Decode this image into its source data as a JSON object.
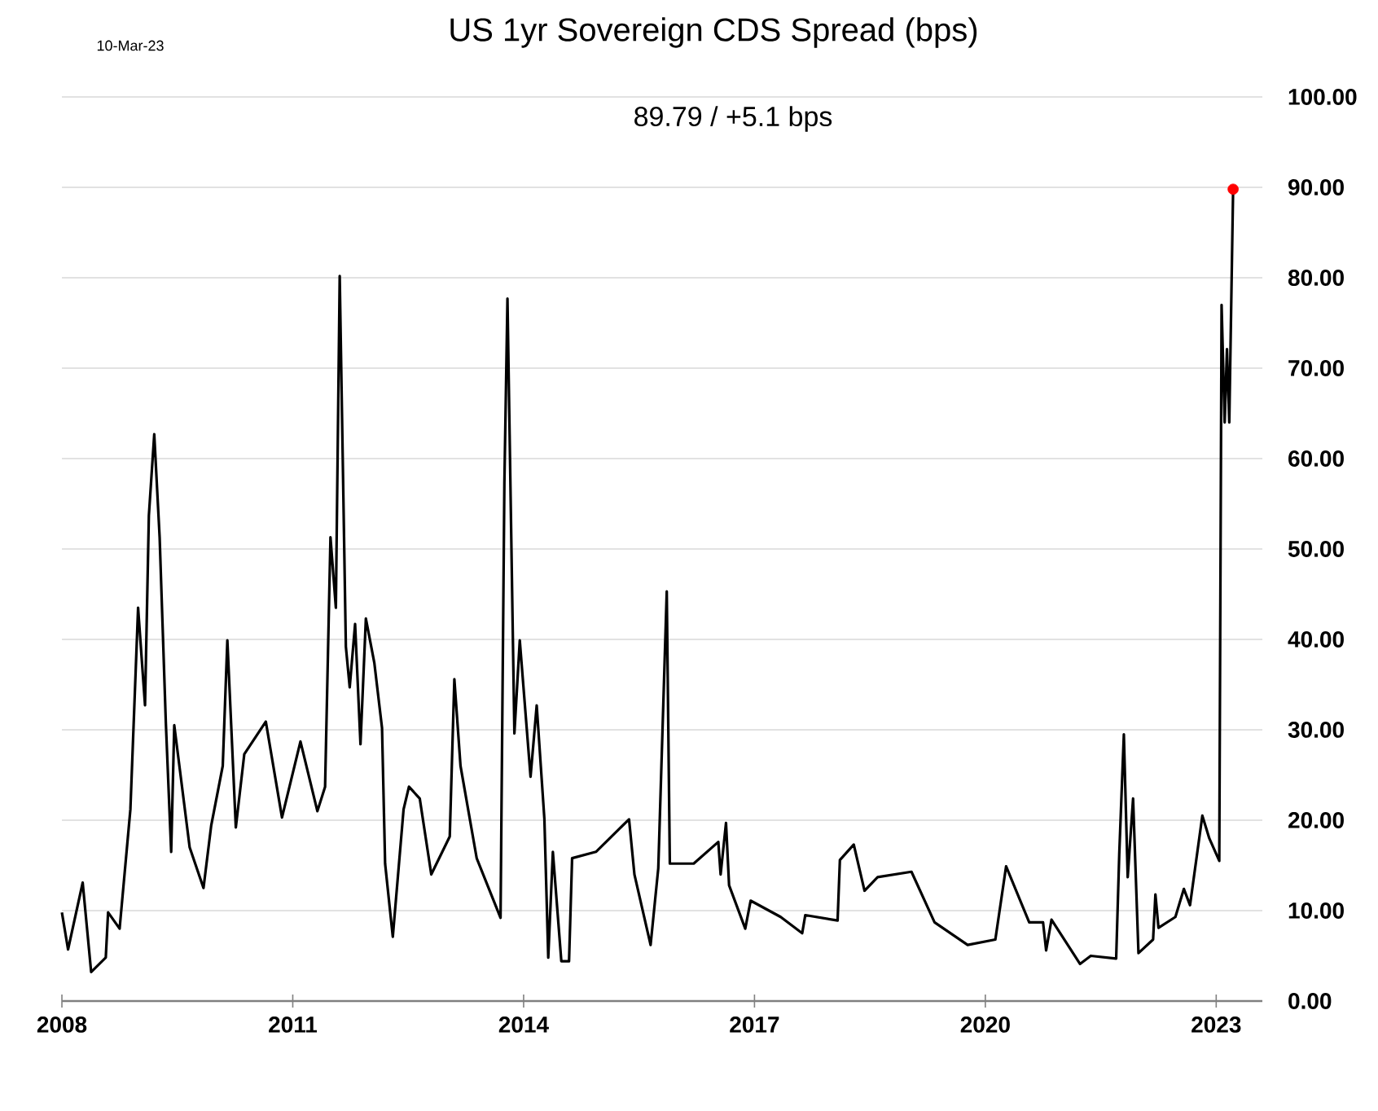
{
  "chart_data": {
    "type": "line",
    "title": "US 1yr Sovereign CDS Spread (bps)",
    "annotations": [
      "10-Mar-23",
      "89.79  /  +5.1 bps"
    ],
    "xlim": [
      2008,
      2023.6
    ],
    "xticks": [
      2008,
      2011,
      2014,
      2017,
      2020,
      2023
    ],
    "ylim": [
      0,
      100
    ],
    "yticks": [
      {
        "value": 0,
        "label": "0.00"
      },
      {
        "value": 10,
        "label": "10.00"
      },
      {
        "value": 20,
        "label": "20.00"
      },
      {
        "value": 30,
        "label": "30.00"
      },
      {
        "value": 40,
        "label": "40.00"
      },
      {
        "value": 50,
        "label": "50.00"
      },
      {
        "value": 60,
        "label": "60.00"
      },
      {
        "value": 70,
        "label": "70.00"
      },
      {
        "value": 80,
        "label": "80.00"
      },
      {
        "value": 90,
        "label": "90.00"
      },
      {
        "value": 100,
        "label": "100.00"
      }
    ],
    "grid": "y",
    "series": [
      {
        "color": "#000000",
        "x": [
          2008.0,
          2008.08,
          2008.27,
          2008.38,
          2008.57,
          2008.6,
          2008.75,
          2008.89,
          2008.99,
          2009.08,
          2009.13,
          2009.2,
          2009.27,
          2009.35,
          2009.42,
          2009.46,
          2009.66,
          2009.84,
          2009.94,
          2010.09,
          2010.15,
          2010.26,
          2010.37,
          2010.65,
          2010.86,
          2011.1,
          2011.32,
          2011.42,
          2011.49,
          2011.56,
          2011.61,
          2011.69,
          2011.74,
          2011.81,
          2011.88,
          2011.95,
          2012.06,
          2012.16,
          2012.2,
          2012.3,
          2012.44,
          2012.51,
          2012.65,
          2012.8,
          2013.04,
          2013.1,
          2013.18,
          2013.39,
          2013.7,
          2013.75,
          2013.79,
          2013.88,
          2013.95,
          2014.09,
          2014.17,
          2014.27,
          2014.32,
          2014.38,
          2014.49,
          2014.59,
          2014.63,
          2014.94,
          2015.37,
          2015.44,
          2015.65,
          2015.75,
          2015.86,
          2015.9,
          2016.21,
          2016.53,
          2016.56,
          2016.63,
          2016.67,
          2016.88,
          2016.95,
          2017.34,
          2017.62,
          2017.66,
          2018.08,
          2018.11,
          2018.29,
          2018.43,
          2018.6,
          2019.04,
          2019.34,
          2019.77,
          2020.13,
          2020.27,
          2020.57,
          2020.75,
          2020.79,
          2020.86,
          2021.23,
          2021.37,
          2021.7,
          2021.74,
          2021.8,
          2021.85,
          2021.92,
          2021.99,
          2022.18,
          2022.21,
          2022.25,
          2022.47,
          2022.58,
          2022.66,
          2022.82,
          2022.91,
          2023.04,
          2023.07,
          2023.11,
          2023.14,
          2023.17,
          2023.2,
          2023.22
        ],
        "values": [
          9.8,
          5.7,
          13.1,
          3.2,
          4.8,
          9.8,
          8,
          21.2,
          43.5,
          32.7,
          53.7,
          62.7,
          51.3,
          30.9,
          16.5,
          30.5,
          17,
          12.5,
          19.4,
          26,
          39.9,
          19.2,
          27.3,
          30.9,
          20.3,
          28.7,
          21,
          23.7,
          51.3,
          43.5,
          80.2,
          39.2,
          34.7,
          41.7,
          28.4,
          42.3,
          37.4,
          30.2,
          15.2,
          7.1,
          21.2,
          23.7,
          22.4,
          14,
          18.2,
          35.6,
          26,
          15.8,
          9.2,
          57.3,
          77.7,
          29.6,
          39.9,
          24.8,
          32.7,
          20.1,
          4.8,
          16.5,
          4.4,
          4.4,
          15.8,
          16.5,
          20.1,
          14,
          6.2,
          14.7,
          45.3,
          15.2,
          15.2,
          17.6,
          14,
          19.7,
          12.8,
          8,
          11.1,
          9.3,
          7.5,
          9.5,
          8.9,
          15.6,
          17.3,
          12.2,
          13.7,
          14.3,
          8.7,
          6.2,
          6.8,
          14.9,
          8.7,
          8.7,
          5.6,
          9,
          4.1,
          5,
          4.7,
          16.2,
          29.5,
          13.7,
          22.4,
          5.3,
          6.8,
          11.8,
          8.1,
          9.3,
          12.4,
          10.6,
          20.5,
          18,
          15.5,
          77,
          64,
          72.1,
          64,
          79.5,
          89.79
        ]
      },
      {
        "type": "scatter",
        "color": "#ff0000",
        "x": [
          2023.22
        ],
        "values": [
          89.79
        ]
      }
    ]
  }
}
